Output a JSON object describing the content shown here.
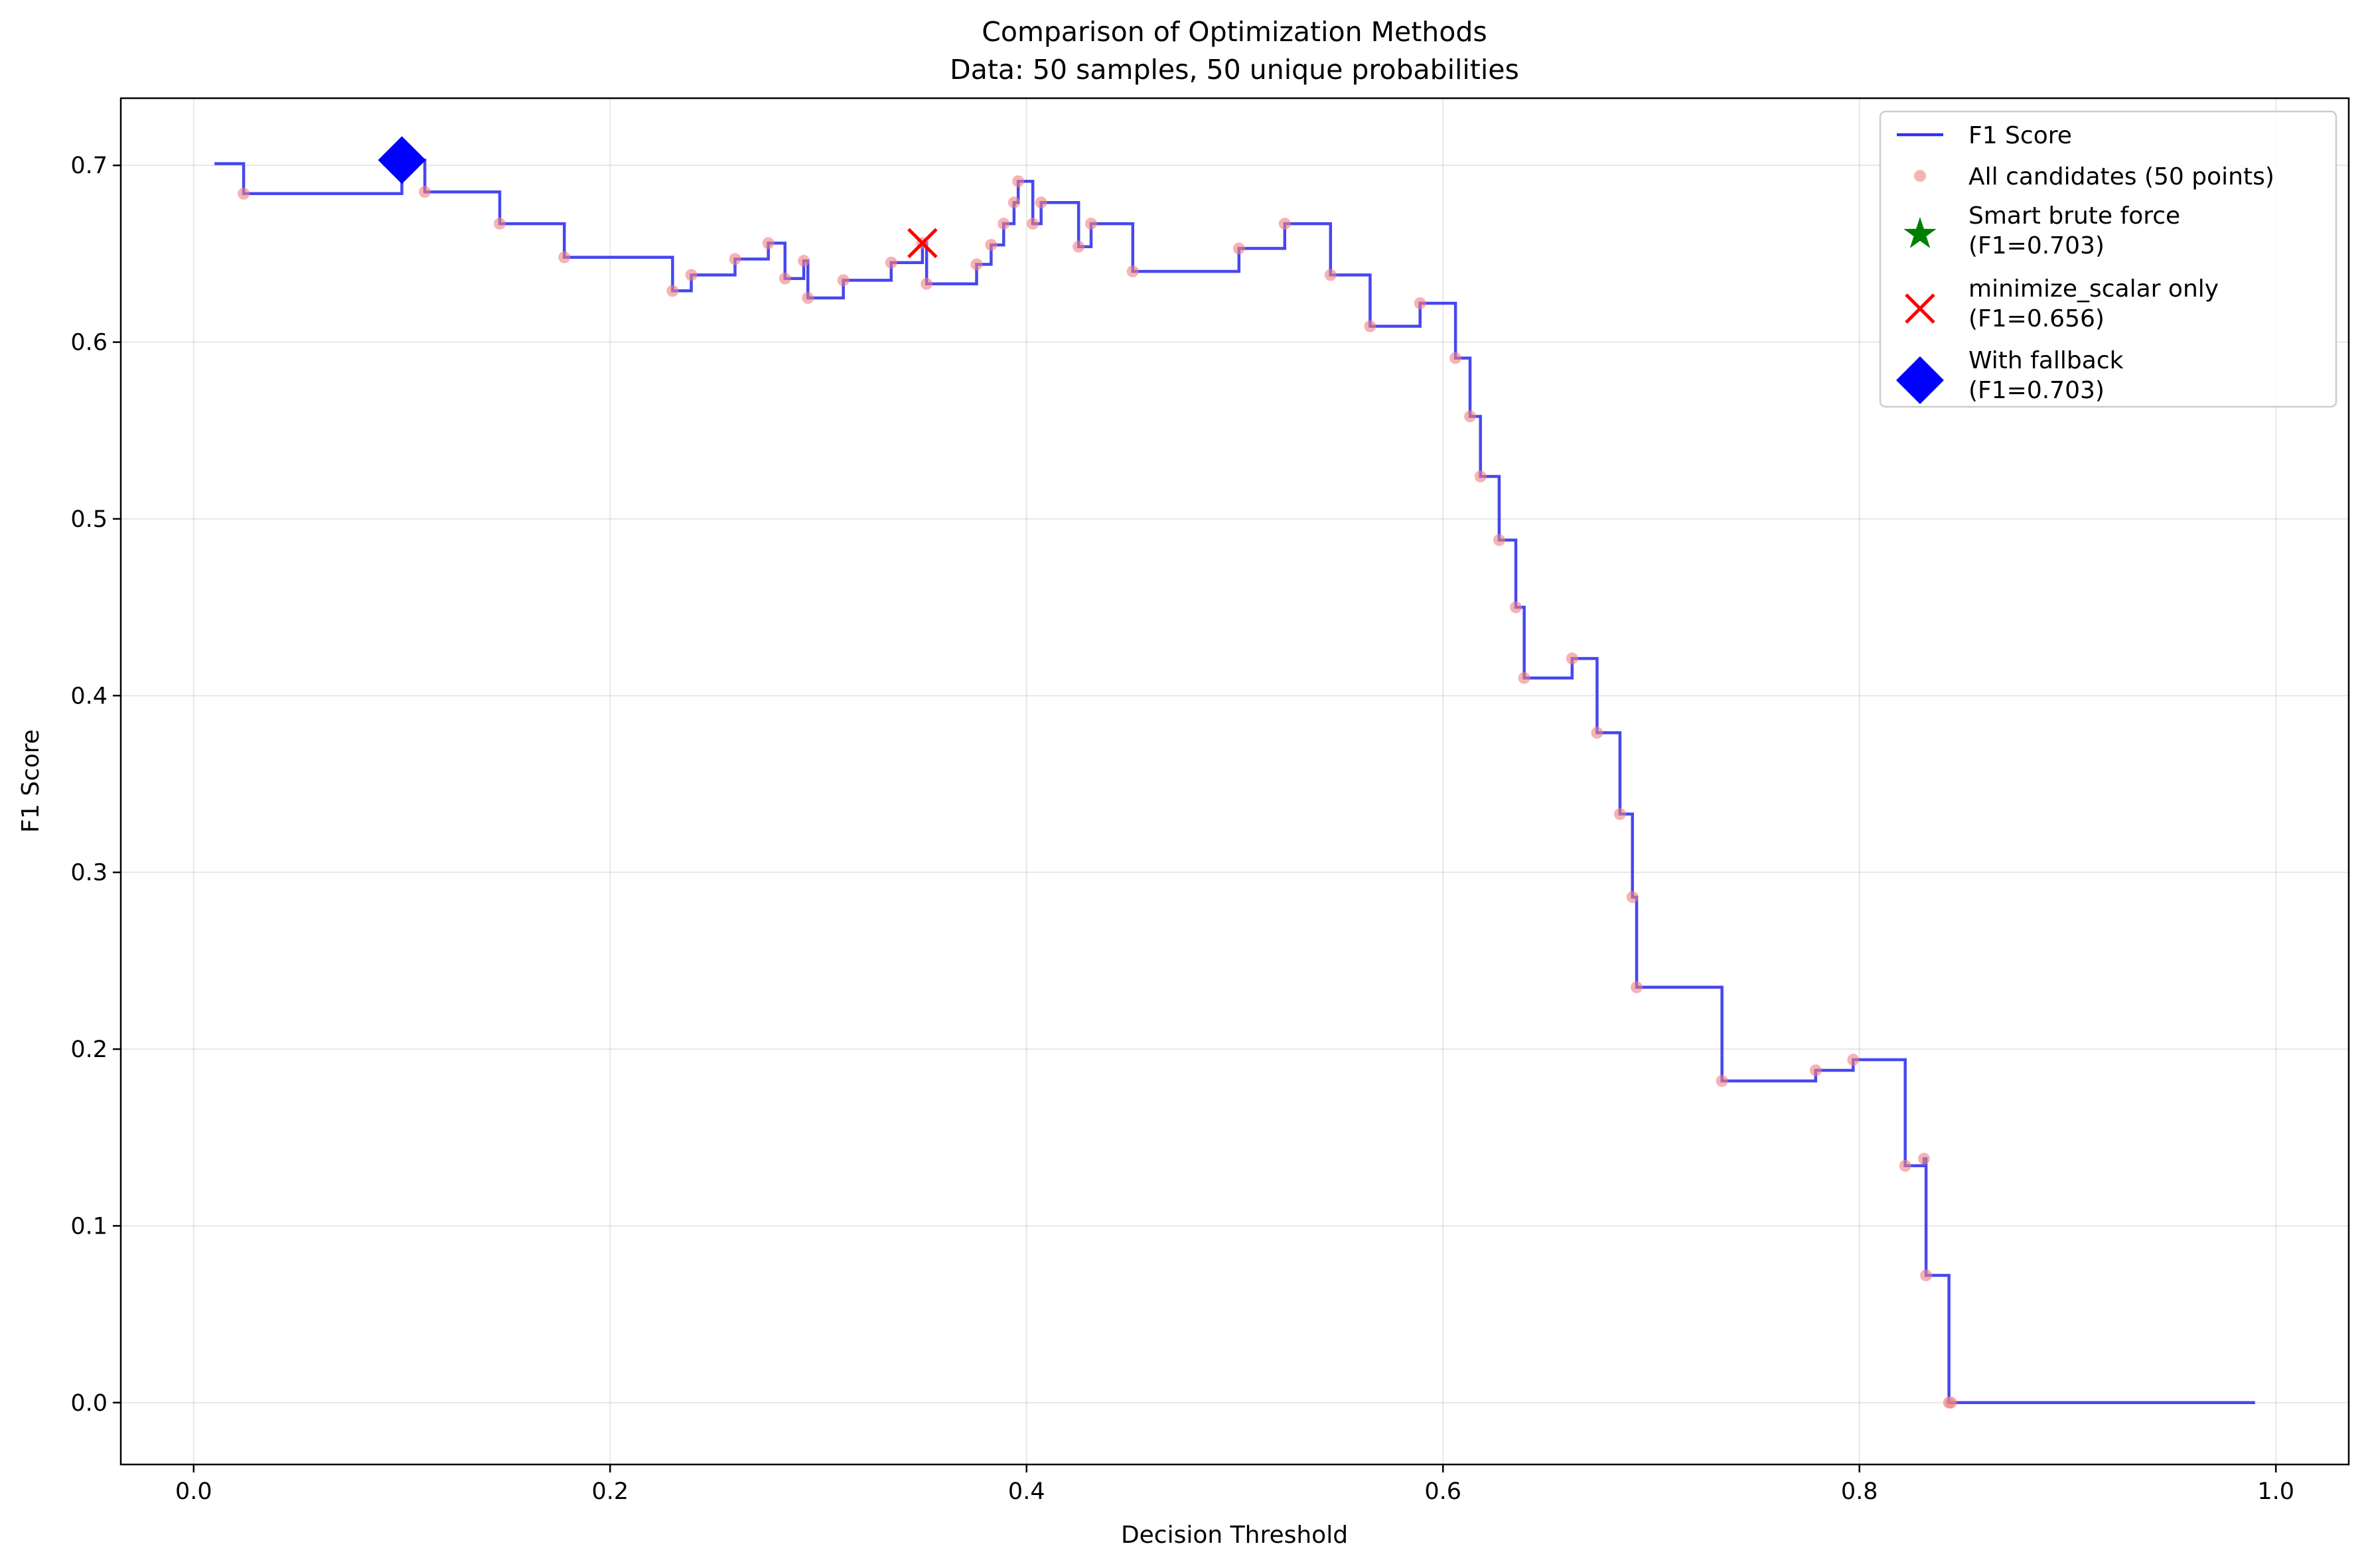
{
  "chart_data": {
    "type": "line",
    "title": "Comparison of Optimization Methods",
    "subtitle": "Data: 50 samples, 50 unique probabilities",
    "xlabel": "Decision Threshold",
    "ylabel": "F1 Score",
    "xlim": [
      -0.035,
      1.035
    ],
    "ylim": [
      -0.035,
      0.738
    ],
    "xticks": [
      {
        "value": 0.0,
        "label": "0.0"
      },
      {
        "value": 0.2,
        "label": "0.2"
      },
      {
        "value": 0.4,
        "label": "0.4"
      },
      {
        "value": 0.6,
        "label": "0.6"
      },
      {
        "value": 0.8,
        "label": "0.8"
      },
      {
        "value": 1.0,
        "label": "1.0"
      }
    ],
    "yticks": [
      {
        "value": 0.0,
        "label": "0.0"
      },
      {
        "value": 0.1,
        "label": "0.1"
      },
      {
        "value": 0.2,
        "label": "0.2"
      },
      {
        "value": 0.3,
        "label": "0.3"
      },
      {
        "value": 0.4,
        "label": "0.4"
      },
      {
        "value": 0.5,
        "label": "0.5"
      },
      {
        "value": 0.6,
        "label": "0.6"
      },
      {
        "value": 0.7,
        "label": "0.7"
      }
    ],
    "grid": true,
    "legend_position": "top-right",
    "colors": {
      "f1_line": "#3333ee",
      "candidates": "#f08080",
      "smart_brute_force": "#008000",
      "minimize_scalar": "#ff0000",
      "fallback": "#0000ff"
    },
    "series": [
      {
        "name": "F1 Score",
        "kind": "step-line",
        "points": [
          [
            0.01,
            0.701
          ],
          [
            0.024,
            0.701
          ],
          [
            0.024,
            0.684
          ],
          [
            0.1,
            0.684
          ],
          [
            0.1,
            0.703
          ],
          [
            0.111,
            0.703
          ],
          [
            0.111,
            0.685
          ],
          [
            0.147,
            0.685
          ],
          [
            0.147,
            0.667
          ],
          [
            0.178,
            0.667
          ],
          [
            0.178,
            0.648
          ],
          [
            0.23,
            0.648
          ],
          [
            0.23,
            0.629
          ],
          [
            0.239,
            0.629
          ],
          [
            0.239,
            0.638
          ],
          [
            0.26,
            0.638
          ],
          [
            0.26,
            0.647
          ],
          [
            0.276,
            0.647
          ],
          [
            0.276,
            0.656
          ],
          [
            0.284,
            0.656
          ],
          [
            0.284,
            0.636
          ],
          [
            0.293,
            0.636
          ],
          [
            0.293,
            0.646
          ],
          [
            0.295,
            0.646
          ],
          [
            0.295,
            0.625
          ],
          [
            0.312,
            0.625
          ],
          [
            0.312,
            0.635
          ],
          [
            0.335,
            0.635
          ],
          [
            0.335,
            0.645
          ],
          [
            0.35,
            0.645
          ],
          [
            0.35,
            0.656
          ],
          [
            0.352,
            0.656
          ],
          [
            0.352,
            0.633
          ],
          [
            0.376,
            0.633
          ],
          [
            0.376,
            0.644
          ],
          [
            0.383,
            0.644
          ],
          [
            0.383,
            0.655
          ],
          [
            0.389,
            0.655
          ],
          [
            0.389,
            0.667
          ],
          [
            0.394,
            0.667
          ],
          [
            0.394,
            0.679
          ],
          [
            0.396,
            0.679
          ],
          [
            0.396,
            0.691
          ],
          [
            0.403,
            0.691
          ],
          [
            0.403,
            0.667
          ],
          [
            0.407,
            0.667
          ],
          [
            0.407,
            0.679
          ],
          [
            0.425,
            0.679
          ],
          [
            0.425,
            0.654
          ],
          [
            0.431,
            0.654
          ],
          [
            0.431,
            0.667
          ],
          [
            0.451,
            0.667
          ],
          [
            0.451,
            0.64
          ],
          [
            0.502,
            0.64
          ],
          [
            0.502,
            0.653
          ],
          [
            0.524,
            0.653
          ],
          [
            0.524,
            0.667
          ],
          [
            0.546,
            0.667
          ],
          [
            0.546,
            0.638
          ],
          [
            0.565,
            0.638
          ],
          [
            0.565,
            0.609
          ],
          [
            0.589,
            0.609
          ],
          [
            0.589,
            0.622
          ],
          [
            0.606,
            0.622
          ],
          [
            0.606,
            0.591
          ],
          [
            0.613,
            0.591
          ],
          [
            0.613,
            0.558
          ],
          [
            0.618,
            0.558
          ],
          [
            0.618,
            0.524
          ],
          [
            0.627,
            0.524
          ],
          [
            0.627,
            0.488
          ],
          [
            0.635,
            0.488
          ],
          [
            0.635,
            0.45
          ],
          [
            0.639,
            0.45
          ],
          [
            0.639,
            0.41
          ],
          [
            0.662,
            0.41
          ],
          [
            0.662,
            0.421
          ],
          [
            0.674,
            0.421
          ],
          [
            0.674,
            0.379
          ],
          [
            0.685,
            0.379
          ],
          [
            0.685,
            0.333
          ],
          [
            0.691,
            0.333
          ],
          [
            0.691,
            0.286
          ],
          [
            0.693,
            0.286
          ],
          [
            0.693,
            0.235
          ],
          [
            0.734,
            0.235
          ],
          [
            0.734,
            0.182
          ],
          [
            0.779,
            0.182
          ],
          [
            0.779,
            0.188
          ],
          [
            0.797,
            0.188
          ],
          [
            0.797,
            0.194
          ],
          [
            0.822,
            0.194
          ],
          [
            0.822,
            0.134
          ],
          [
            0.831,
            0.134
          ],
          [
            0.831,
            0.138
          ],
          [
            0.832,
            0.138
          ],
          [
            0.832,
            0.072
          ],
          [
            0.843,
            0.072
          ],
          [
            0.843,
            0.0
          ],
          [
            0.99,
            0.0
          ]
        ]
      },
      {
        "name": "All candidates (50 points)",
        "kind": "scatter",
        "points": [
          [
            0.024,
            0.684
          ],
          [
            0.1,
            0.703
          ],
          [
            0.111,
            0.685
          ],
          [
            0.147,
            0.667
          ],
          [
            0.178,
            0.648
          ],
          [
            0.23,
            0.629
          ],
          [
            0.239,
            0.638
          ],
          [
            0.26,
            0.647
          ],
          [
            0.276,
            0.656
          ],
          [
            0.284,
            0.636
          ],
          [
            0.293,
            0.646
          ],
          [
            0.295,
            0.625
          ],
          [
            0.312,
            0.635
          ],
          [
            0.335,
            0.645
          ],
          [
            0.35,
            0.656
          ],
          [
            0.352,
            0.633
          ],
          [
            0.376,
            0.644
          ],
          [
            0.383,
            0.655
          ],
          [
            0.389,
            0.667
          ],
          [
            0.394,
            0.679
          ],
          [
            0.396,
            0.691
          ],
          [
            0.403,
            0.667
          ],
          [
            0.407,
            0.679
          ],
          [
            0.425,
            0.654
          ],
          [
            0.431,
            0.667
          ],
          [
            0.451,
            0.64
          ],
          [
            0.502,
            0.653
          ],
          [
            0.524,
            0.667
          ],
          [
            0.546,
            0.638
          ],
          [
            0.565,
            0.609
          ],
          [
            0.589,
            0.622
          ],
          [
            0.606,
            0.591
          ],
          [
            0.613,
            0.558
          ],
          [
            0.618,
            0.524
          ],
          [
            0.627,
            0.488
          ],
          [
            0.635,
            0.45
          ],
          [
            0.639,
            0.41
          ],
          [
            0.662,
            0.421
          ],
          [
            0.674,
            0.379
          ],
          [
            0.685,
            0.333
          ],
          [
            0.691,
            0.286
          ],
          [
            0.693,
            0.235
          ],
          [
            0.734,
            0.182
          ],
          [
            0.779,
            0.188
          ],
          [
            0.797,
            0.194
          ],
          [
            0.822,
            0.134
          ],
          [
            0.831,
            0.138
          ],
          [
            0.832,
            0.072
          ],
          [
            0.843,
            0.0
          ],
          [
            0.844,
            0.0
          ]
        ]
      },
      {
        "name": "Smart brute force",
        "legend_label": "Smart brute force\n(F1=0.703)",
        "kind": "marker-star",
        "points": [
          [
            0.1,
            0.703
          ]
        ]
      },
      {
        "name": "minimize_scalar only",
        "legend_label": "minimize_scalar only\n(F1=0.656)",
        "kind": "marker-x",
        "points": [
          [
            0.35,
            0.656
          ]
        ]
      },
      {
        "name": "With fallback",
        "legend_label": "With fallback\n(F1=0.703)",
        "kind": "marker-diamond",
        "points": [
          [
            0.1,
            0.703
          ]
        ]
      }
    ]
  }
}
